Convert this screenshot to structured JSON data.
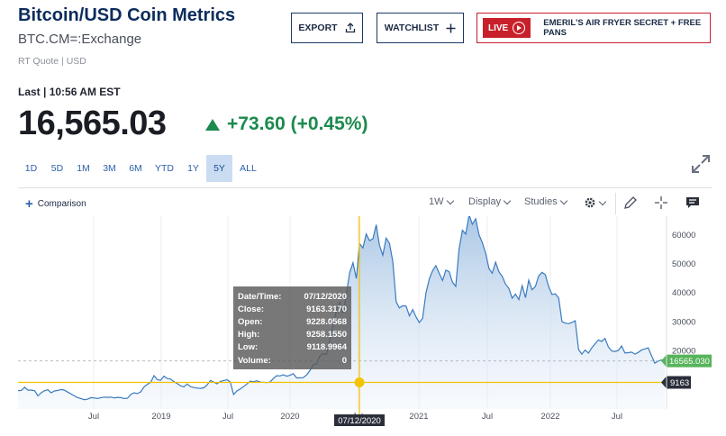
{
  "header": {
    "title": "Bitcoin/USD Coin Metrics",
    "symbol": "BTC.CM=:Exchange",
    "quote_info": "RT Quote | USD"
  },
  "actions": {
    "export_label": "EXPORT",
    "watchlist_label": "WATCHLIST",
    "live_label": "LIVE",
    "ad_text": "EMERIL'S AIR FRYER SECRET + FREE PANS"
  },
  "quote": {
    "last_label": "Last | 10:56 AM EST",
    "price": "16,565.03",
    "change": "+73.60 (+0.45%)",
    "direction": "up"
  },
  "ranges": {
    "items": [
      "1D",
      "5D",
      "1M",
      "3M",
      "6M",
      "YTD",
      "1Y",
      "5Y",
      "ALL"
    ],
    "active": "5Y"
  },
  "toolbar": {
    "comparison_label": "Comparison",
    "interval_label": "1W",
    "display_label": "Display",
    "studies_label": "Studies"
  },
  "tooltip": {
    "rows": [
      {
        "label": "Date/Time:",
        "value": "07/12/2020"
      },
      {
        "label": "Close:",
        "value": "9163.3170"
      },
      {
        "label": "Open:",
        "value": "9228.0568"
      },
      {
        "label": "High:",
        "value": "9258.1550"
      },
      {
        "label": "Low:",
        "value": "9118.9964"
      },
      {
        "label": "Volume:",
        "value": "0"
      }
    ]
  },
  "colors": {
    "title": "#0b2c5c",
    "positive": "#1b8a4e",
    "line": "#3a7bbf",
    "crosshair": "#f2c300",
    "price_tag": "#56b45a",
    "live": "#c8202b"
  },
  "chart_data": {
    "type": "area",
    "x_labels": [
      "Jul",
      "2019",
      "Jul",
      "2020",
      "Jul",
      "2021",
      "Jul",
      "2022",
      "Jul"
    ],
    "y_ticks": [
      60000,
      50000,
      40000,
      30000,
      20000
    ],
    "ylim": [
      0,
      65000
    ],
    "current_price_label": "16565.030",
    "crosshair_value_label": "9163",
    "crosshair_date_label": "07/12/2020",
    "series": [
      {
        "values": [
          6300,
          6400,
          7500,
          6500,
          6500,
          6300,
          4500,
          5600,
          6300,
          6600,
          5600,
          6200,
          6400,
          6700,
          6500,
          5800,
          5200,
          4500,
          3900,
          3600,
          3200,
          3400,
          3900,
          3800,
          3600,
          3900,
          4100,
          4000,
          4100,
          3800,
          4000,
          3900,
          3600,
          3700,
          5000,
          5600,
          5300,
          5900,
          7600,
          8500,
          9200,
          11500,
          10100,
          9900,
          11300,
          10500,
          10300,
          9400,
          8800,
          8000,
          7600,
          8600,
          7700,
          7400,
          7200,
          7100,
          7300,
          8300,
          9800,
          9300,
          8700,
          9500,
          9800,
          10100,
          9300,
          5000,
          6200,
          6900,
          7700,
          8600,
          9600,
          9400,
          9700,
          9300,
          9200,
          9100,
          9300,
          10500,
          11500,
          11400,
          11800,
          11300,
          11600,
          12200,
          10700,
          10700,
          10800,
          11700,
          13200,
          15300,
          15500,
          18300,
          19100,
          18800,
          23800,
          28900,
          34000,
          36800,
          33000,
          39500,
          47000,
          50400,
          45000,
          57000,
          55500,
          60300,
          58000,
          58700,
          63500,
          56400,
          53000,
          58900,
          57100,
          50800,
          37000,
          34800,
          35600,
          35500,
          32100,
          34300,
          31800,
          29800,
          31300,
          40000,
          44800,
          47700,
          49400,
          46800,
          44300,
          47900,
          47300,
          43700,
          42300,
          55300,
          61600,
          60300,
          66900,
          63700,
          65600,
          60100,
          57300,
          53700,
          48400,
          46800,
          50600,
          47300,
          45700,
          43000,
          41600,
          38200,
          39600,
          37700,
          42500,
          38400,
          44400,
          41100,
          42200,
          45900,
          47100,
          46300,
          42200,
          39500,
          39700,
          38300,
          30100,
          29600,
          29400,
          29800,
          30400,
          20500,
          18900,
          20300,
          19300,
          21100,
          22500,
          23800,
          23300,
          24300,
          21400,
          20000,
          19800,
          20200,
          21700,
          19300,
          19400,
          19600,
          18900,
          19500,
          20300,
          20700,
          21100,
          18400,
          15800,
          16500,
          16900,
          16565
        ]
      }
    ]
  }
}
